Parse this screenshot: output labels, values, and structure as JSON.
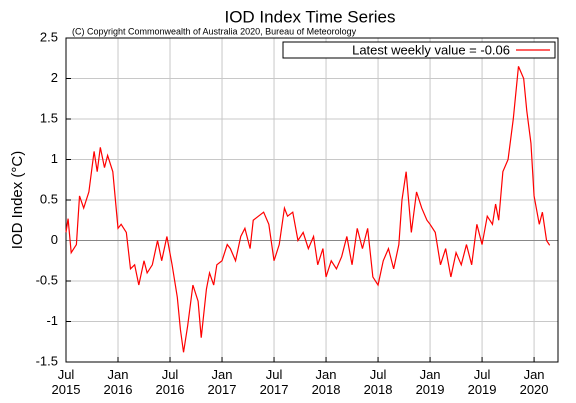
{
  "chart_data": {
    "type": "line",
    "title": "IOD Index Time Series",
    "subtitle": "(C) Copyright Commonwealth of Australia 2020, Bureau of Meteorology",
    "y_label": "IOD Index (°C)",
    "legend_position": "top-right",
    "grid": true,
    "xlim": [
      2015.5,
      2020.23
    ],
    "ylim": [
      -1.5,
      2.5
    ],
    "yticks": [
      -1.5,
      -1,
      -0.5,
      0,
      0.5,
      1,
      1.5,
      2,
      2.5
    ],
    "xticks": [
      {
        "value": 2015.5,
        "label": "Jul 2015"
      },
      {
        "value": 2016.0,
        "label": "Jan 2016"
      },
      {
        "value": 2016.5,
        "label": "Jul 2016"
      },
      {
        "value": 2017.0,
        "label": "Jan 2017"
      },
      {
        "value": 2017.5,
        "label": "Jul 2017"
      },
      {
        "value": 2018.0,
        "label": "Jan 2018"
      },
      {
        "value": 2018.5,
        "label": "Jul 2018"
      },
      {
        "value": 2019.0,
        "label": "Jan 2019"
      },
      {
        "value": 2019.5,
        "label": "Jul 2019"
      },
      {
        "value": 2020.0,
        "label": "Jan 2020"
      }
    ],
    "x": [
      2015.5,
      2015.52,
      2015.55,
      2015.6,
      2015.63,
      2015.67,
      2015.72,
      2015.77,
      2015.8,
      2015.83,
      2015.87,
      2015.9,
      2015.95,
      2016.0,
      2016.03,
      2016.08,
      2016.12,
      2016.16,
      2016.2,
      2016.25,
      2016.28,
      2016.33,
      2016.38,
      2016.42,
      2016.47,
      2016.52,
      2016.57,
      2016.6,
      2016.63,
      2016.67,
      2016.72,
      2016.77,
      2016.8,
      2016.85,
      2016.88,
      2016.92,
      2016.95,
      2017.0,
      2017.05,
      2017.08,
      2017.13,
      2017.18,
      2017.22,
      2017.27,
      2017.3,
      2017.35,
      2017.4,
      2017.45,
      2017.5,
      2017.55,
      2017.6,
      2017.63,
      2017.68,
      2017.73,
      2017.78,
      2017.83,
      2017.88,
      2017.92,
      2017.97,
      2018.0,
      2018.05,
      2018.1,
      2018.15,
      2018.2,
      2018.25,
      2018.3,
      2018.35,
      2018.4,
      2018.45,
      2018.5,
      2018.55,
      2018.6,
      2018.65,
      2018.7,
      2018.73,
      2018.77,
      2018.82,
      2018.87,
      2018.92,
      2018.97,
      2019.0,
      2019.05,
      2019.1,
      2019.15,
      2019.2,
      2019.25,
      2019.3,
      2019.35,
      2019.4,
      2019.45,
      2019.5,
      2019.55,
      2019.6,
      2019.63,
      2019.66,
      2019.7,
      2019.75,
      2019.8,
      2019.85,
      2019.9,
      2019.93,
      2019.97,
      2020.0,
      2020.05,
      2020.08,
      2020.12,
      2020.15
    ],
    "series": [
      {
        "name": "Latest weekly value = -0.06",
        "color": "#ff0000",
        "values": [
          0.1,
          0.27,
          -0.15,
          -0.05,
          0.55,
          0.4,
          0.6,
          1.1,
          0.85,
          1.15,
          0.9,
          1.05,
          0.85,
          0.15,
          0.2,
          0.1,
          -0.35,
          -0.3,
          -0.55,
          -0.25,
          -0.4,
          -0.3,
          0.0,
          -0.25,
          0.05,
          -0.3,
          -0.7,
          -1.1,
          -1.38,
          -1.05,
          -0.55,
          -0.75,
          -1.2,
          -0.6,
          -0.4,
          -0.55,
          -0.3,
          -0.25,
          -0.05,
          -0.1,
          -0.25,
          0.05,
          0.15,
          -0.1,
          0.25,
          0.3,
          0.35,
          0.2,
          -0.25,
          -0.05,
          0.4,
          0.3,
          0.35,
          0.0,
          0.1,
          -0.1,
          0.05,
          -0.3,
          -0.1,
          -0.45,
          -0.25,
          -0.35,
          -0.2,
          0.05,
          -0.3,
          0.15,
          -0.1,
          0.15,
          -0.45,
          -0.55,
          -0.25,
          -0.1,
          -0.35,
          -0.05,
          0.5,
          0.85,
          0.1,
          0.6,
          0.4,
          0.25,
          0.2,
          0.1,
          -0.3,
          -0.1,
          -0.45,
          -0.15,
          -0.3,
          -0.05,
          -0.3,
          0.2,
          -0.05,
          0.3,
          0.2,
          0.45,
          0.25,
          0.85,
          1.0,
          1.5,
          2.15,
          2.0,
          1.6,
          1.2,
          0.55,
          0.2,
          0.35,
          0.0,
          -0.06
        ]
      }
    ]
  }
}
